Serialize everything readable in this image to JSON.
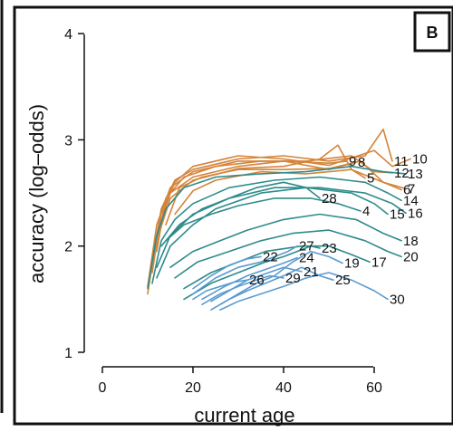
{
  "panel": {
    "letter": "B"
  },
  "colors": {
    "teal": "#2e8b8b",
    "orange": "#d4843a",
    "blue": "#5b9bd0",
    "frame": "#111111"
  },
  "chart_data": {
    "type": "line",
    "title": "",
    "xlabel": "current age",
    "ylabel": "accuracy (log–odds)",
    "xlim": [
      -5,
      72
    ],
    "ylim": [
      0.85,
      4.15
    ],
    "xticks": [
      0,
      20,
      40,
      60
    ],
    "yticks": [
      1,
      2,
      3,
      4
    ],
    "xtick_labels": [
      "0",
      "20",
      "40",
      "60"
    ],
    "ytick_labels": [
      "1",
      "2",
      "3",
      "4"
    ],
    "grid": false,
    "legend": "none",
    "series": [
      {
        "name": "9",
        "color": "#d4843a",
        "x": [
          10,
          12,
          15,
          20,
          30,
          40,
          50,
          54
        ],
        "y": [
          1.55,
          2.1,
          2.5,
          2.65,
          2.75,
          2.8,
          2.78,
          2.8
        ]
      },
      {
        "name": "8",
        "color": "#d4843a",
        "x": [
          10,
          12,
          15,
          20,
          30,
          40,
          50,
          56
        ],
        "y": [
          1.62,
          2.2,
          2.55,
          2.7,
          2.8,
          2.8,
          2.72,
          2.79
        ]
      },
      {
        "name": "10",
        "color": "#d4843a",
        "x": [
          11,
          13,
          16,
          20,
          30,
          40,
          50,
          60,
          64,
          68
        ],
        "y": [
          1.75,
          2.3,
          2.6,
          2.75,
          2.85,
          2.82,
          2.76,
          2.9,
          2.75,
          2.82
        ]
      },
      {
        "name": "11",
        "color": "#d4843a",
        "x": [
          11,
          13,
          16,
          20,
          30,
          40,
          50,
          58,
          62,
          64
        ],
        "y": [
          1.85,
          2.35,
          2.62,
          2.72,
          2.82,
          2.85,
          2.8,
          2.85,
          3.1,
          2.8
        ]
      },
      {
        "name": "12",
        "color": "#d4843a",
        "x": [
          12,
          14,
          18,
          25,
          35,
          45,
          55,
          60,
          64
        ],
        "y": [
          1.95,
          2.45,
          2.65,
          2.75,
          2.8,
          2.8,
          2.85,
          2.7,
          2.69
        ]
      },
      {
        "name": "5",
        "color": "#d4843a",
        "x": [
          12,
          15,
          20,
          30,
          40,
          48,
          52,
          55,
          58
        ],
        "y": [
          2.05,
          2.45,
          2.62,
          2.73,
          2.75,
          2.82,
          2.95,
          2.72,
          2.64
        ]
      },
      {
        "name": "6",
        "color": "#d4843a",
        "x": [
          14,
          17,
          22,
          30,
          40,
          50,
          57,
          62,
          66
        ],
        "y": [
          2.2,
          2.55,
          2.65,
          2.72,
          2.72,
          2.73,
          2.8,
          2.6,
          2.53
        ]
      },
      {
        "name": "7",
        "color": "#d4843a",
        "x": [
          16,
          20,
          25,
          35,
          45,
          55,
          62,
          67
        ],
        "y": [
          2.3,
          2.52,
          2.62,
          2.7,
          2.68,
          2.72,
          2.6,
          2.54
        ]
      },
      {
        "name": "13",
        "color": "#2e8b8b",
        "x": [
          10,
          12,
          14,
          18,
          25,
          35,
          45,
          55,
          62,
          67
        ],
        "y": [
          1.6,
          2.1,
          2.35,
          2.55,
          2.65,
          2.68,
          2.7,
          2.75,
          2.7,
          2.68
        ]
      },
      {
        "name": "14",
        "color": "#2e8b8b",
        "x": [
          11,
          13,
          16,
          20,
          28,
          38,
          48,
          58,
          63,
          66
        ],
        "y": [
          1.65,
          2.05,
          2.25,
          2.4,
          2.55,
          2.62,
          2.65,
          2.6,
          2.5,
          2.43
        ]
      },
      {
        "name": "15",
        "color": "#2e8b8b",
        "x": [
          12,
          15,
          20,
          25,
          35,
          45,
          55,
          60,
          63
        ],
        "y": [
          1.7,
          2.0,
          2.2,
          2.35,
          2.5,
          2.55,
          2.5,
          2.4,
          2.3
        ]
      },
      {
        "name": "16",
        "color": "#2e8b8b",
        "x": [
          12,
          15,
          20,
          28,
          38,
          48,
          58,
          64,
          67
        ],
        "y": [
          1.8,
          2.1,
          2.3,
          2.45,
          2.55,
          2.55,
          2.5,
          2.4,
          2.31
        ]
      },
      {
        "name": "28",
        "color": "#2e8b8b",
        "x": [
          13,
          17,
          22,
          28,
          34,
          40,
          45,
          48
        ],
        "y": [
          2.0,
          2.2,
          2.35,
          2.45,
          2.55,
          2.6,
          2.55,
          2.45
        ]
      },
      {
        "name": "4",
        "color": "#2e8b8b",
        "x": [
          14,
          18,
          24,
          30,
          38,
          46,
          52,
          57
        ],
        "y": [
          2.05,
          2.2,
          2.3,
          2.38,
          2.45,
          2.45,
          2.4,
          2.33
        ]
      },
      {
        "name": "18",
        "color": "#2e8b8b",
        "x": [
          15,
          20,
          26,
          32,
          40,
          48,
          56,
          62,
          66
        ],
        "y": [
          1.8,
          1.95,
          2.05,
          2.15,
          2.25,
          2.3,
          2.25,
          2.12,
          2.05
        ]
      },
      {
        "name": "20",
        "color": "#2e8b8b",
        "x": [
          16,
          21,
          28,
          35,
          42,
          50,
          58,
          63,
          66
        ],
        "y": [
          1.7,
          1.85,
          1.95,
          2.05,
          2.12,
          2.15,
          2.05,
          1.95,
          1.9
        ]
      },
      {
        "name": "17",
        "color": "#2e8b8b",
        "x": [
          18,
          24,
          30,
          36,
          44,
          50,
          55,
          59
        ],
        "y": [
          1.6,
          1.75,
          1.85,
          1.95,
          2.0,
          2.0,
          1.92,
          1.85
        ]
      },
      {
        "name": "23",
        "color": "#2e8b8b",
        "x": [
          18,
          24,
          30,
          36,
          40,
          43,
          46,
          48
        ],
        "y": [
          1.5,
          1.65,
          1.75,
          1.85,
          1.9,
          1.95,
          2.0,
          1.98
        ]
      },
      {
        "name": "27",
        "color": "#5b9bd0",
        "x": [
          20,
          25,
          30,
          35,
          38,
          41,
          43
        ],
        "y": [
          1.55,
          1.7,
          1.8,
          1.85,
          1.9,
          1.95,
          2.0
        ]
      },
      {
        "name": "22",
        "color": "#5b9bd0",
        "x": [
          20,
          24,
          28,
          32,
          35
        ],
        "y": [
          1.6,
          1.72,
          1.82,
          1.88,
          1.9
        ]
      },
      {
        "name": "24",
        "color": "#5b9bd0",
        "x": [
          22,
          27,
          32,
          36,
          40,
          43
        ],
        "y": [
          1.5,
          1.62,
          1.72,
          1.78,
          1.84,
          1.89
        ]
      },
      {
        "name": "21",
        "color": "#5b9bd0",
        "x": [
          24,
          28,
          32,
          36,
          40,
          44
        ],
        "y": [
          1.48,
          1.58,
          1.68,
          1.74,
          1.8,
          1.76
        ]
      },
      {
        "name": "19",
        "color": "#5b9bd0",
        "x": [
          26,
          30,
          34,
          38,
          42,
          46,
          50,
          53
        ],
        "y": [
          1.45,
          1.55,
          1.65,
          1.72,
          1.85,
          1.95,
          1.9,
          1.84
        ]
      },
      {
        "name": "26",
        "color": "#5b9bd0",
        "x": [
          20,
          23,
          26,
          29,
          32
        ],
        "y": [
          1.5,
          1.58,
          1.62,
          1.66,
          1.68
        ]
      },
      {
        "name": "29",
        "color": "#5b9bd0",
        "x": [
          22,
          26,
          30,
          34,
          37,
          40
        ],
        "y": [
          1.45,
          1.55,
          1.62,
          1.68,
          1.72,
          1.7
        ]
      },
      {
        "name": "25",
        "color": "#5b9bd0",
        "x": [
          24,
          28,
          32,
          36,
          40,
          44,
          48,
          51
        ],
        "y": [
          1.4,
          1.5,
          1.58,
          1.65,
          1.72,
          1.8,
          1.72,
          1.68
        ]
      },
      {
        "name": "30",
        "color": "#5b9bd0",
        "x": [
          26,
          30,
          35,
          40,
          45,
          50,
          55,
          60,
          63
        ],
        "y": [
          1.4,
          1.48,
          1.55,
          1.62,
          1.7,
          1.75,
          1.68,
          1.58,
          1.5
        ]
      }
    ]
  }
}
